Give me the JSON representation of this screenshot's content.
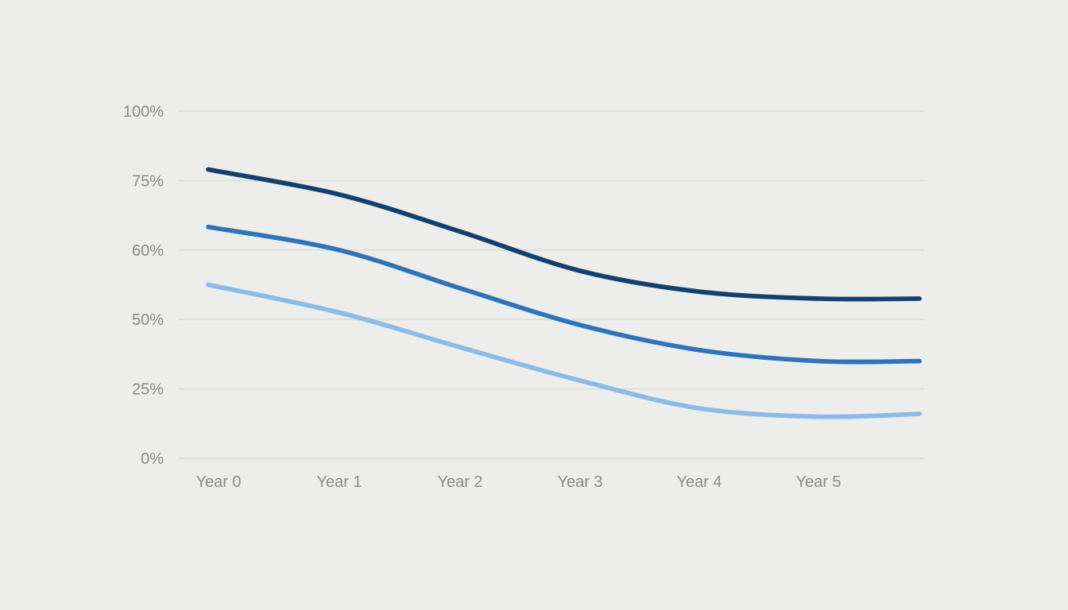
{
  "chart": {
    "title": "",
    "background_color": "#EDEDEC",
    "gridline_color": "#DEDEDC",
    "tick_label_color": "#8A8A8A"
  },
  "chart_data": {
    "type": "line",
    "title": "",
    "xlabel": "",
    "ylabel": "",
    "categories": [
      "Year 0",
      "Year 1",
      "Year 2",
      "Year 3",
      "Year 4",
      "Year 5"
    ],
    "y_ticks": [
      {
        "label": "100%",
        "value": 100
      },
      {
        "label": "75%",
        "value": 75
      },
      {
        "label": "60%",
        "value": 60
      },
      {
        "label": "50%",
        "value": 50
      },
      {
        "label": "25%",
        "value": 25
      },
      {
        "label": "0%",
        "value": 0
      }
    ],
    "axis_notes": "y tick labels are evenly spaced as displayed (non-linear value scale); horizontal gridlines only; no legend; no title; lines start slightly left of Year 0 and extend ~0.84 category-widths past Year 5",
    "grid": "horizontal",
    "legend": "none",
    "series": [
      {
        "name": "dark-navy-line",
        "color": "#15406D",
        "values": [
          79,
          72,
          64,
          57,
          54,
          53
        ],
        "end_value": 53
      },
      {
        "name": "medium-blue-line",
        "color": "#2F74B8",
        "values": [
          65,
          60,
          54.5,
          48,
          39,
          35
        ],
        "end_value": 35
      },
      {
        "name": "light-blue-line",
        "color": "#8CBCE6",
        "values": [
          55,
          51,
          40,
          28,
          18,
          15
        ],
        "end_value": 16
      }
    ]
  }
}
